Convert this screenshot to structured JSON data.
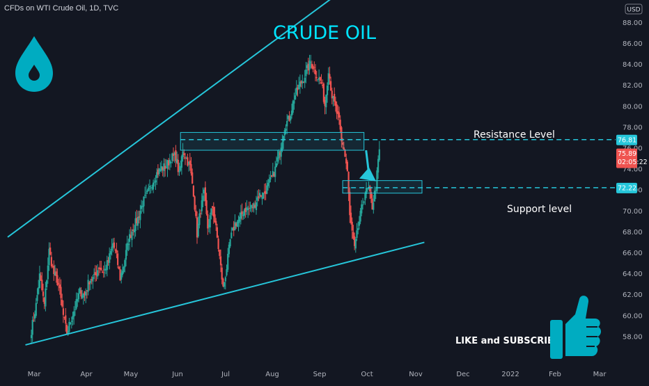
{
  "header": {
    "symbol_line": "CFDs on WTI Crude Oil, 1D, TVC",
    "currency_badge": "USD"
  },
  "colors": {
    "background": "#131722",
    "up": "#26a69a",
    "down": "#ef5350",
    "cyan": "#26c6da",
    "title": "#00e5ff",
    "drop_icon": "#00acc1"
  },
  "icons": {
    "drop": "water-drop-icon",
    "thumb": "thumbs-up-icon"
  },
  "annotations": {
    "title": "CRUDE OIL",
    "resistance_label": "Resistance Level",
    "support_label": "Support level",
    "cta": "LIKE and SUBSCRIBE"
  },
  "price_tags": {
    "resistance": "76.81",
    "current_price": "75.89",
    "countdown": "02:05:22",
    "support": "72.22"
  },
  "chart_data": {
    "type": "candlestick",
    "symbol": "CFDs on WTI Crude Oil",
    "interval": "1D",
    "source": "TVC",
    "currency": "USD",
    "ylim": [
      56.5,
      90.5
    ],
    "y_ticks": [
      58,
      60,
      62,
      64,
      66,
      68,
      70,
      72,
      74,
      76,
      78,
      80,
      82,
      84,
      86,
      88
    ],
    "x_ticks": [
      "Mar",
      "Apr",
      "May",
      "Jun",
      "Jul",
      "Aug",
      "Sep",
      "Oct",
      "Nov",
      "Dec",
      "2022",
      "Feb",
      "Mar"
    ],
    "close_path": [
      [
        0,
        58.6
      ],
      [
        4,
        61.0
      ],
      [
        7,
        63.8
      ],
      [
        11,
        61.0
      ],
      [
        15,
        66.2
      ],
      [
        19,
        64.0
      ],
      [
        23,
        63.0
      ],
      [
        27,
        60.0
      ],
      [
        30,
        58.3
      ],
      [
        33,
        59.5
      ],
      [
        37,
        60.8
      ],
      [
        41,
        62.3
      ],
      [
        45,
        62.0
      ],
      [
        49,
        63.4
      ],
      [
        53,
        63.6
      ],
      [
        57,
        64.7
      ],
      [
        61,
        64.1
      ],
      [
        65,
        65.2
      ],
      [
        69,
        66.9
      ],
      [
        72,
        65.6
      ],
      [
        75,
        63.6
      ],
      [
        78,
        64.8
      ],
      [
        82,
        67.2
      ],
      [
        86,
        68.4
      ],
      [
        90,
        69.3
      ],
      [
        94,
        70.8
      ],
      [
        98,
        71.6
      ],
      [
        102,
        72.7
      ],
      [
        106,
        73.6
      ],
      [
        110,
        74.1
      ],
      [
        114,
        74.3
      ],
      [
        118,
        75.1
      ],
      [
        122,
        75.2
      ],
      [
        125,
        73.4
      ],
      [
        128,
        75.9
      ],
      [
        131,
        75.0
      ],
      [
        134,
        74.2
      ],
      [
        137,
        71.8
      ],
      [
        140,
        67.8
      ],
      [
        143,
        70.2
      ],
      [
        146,
        71.6
      ],
      [
        149,
        68.4
      ],
      [
        153,
        70.4
      ],
      [
        156,
        68.3
      ],
      [
        159,
        65.6
      ],
      [
        162,
        62.6
      ],
      [
        165,
        64.6
      ],
      [
        168,
        67.2
      ],
      [
        172,
        68.8
      ],
      [
        176,
        69.2
      ],
      [
        180,
        70.2
      ],
      [
        184,
        70.2
      ],
      [
        188,
        70.5
      ],
      [
        192,
        71.5
      ],
      [
        196,
        71.6
      ],
      [
        200,
        72.4
      ],
      [
        203,
        73.1
      ],
      [
        206,
        74.0
      ],
      [
        210,
        75.8
      ],
      [
        214,
        78.1
      ],
      [
        218,
        78.9
      ],
      [
        222,
        80.8
      ],
      [
        226,
        81.9
      ],
      [
        230,
        82.7
      ],
      [
        233,
        83.5
      ],
      [
        236,
        84.2
      ],
      [
        239,
        83.6
      ],
      [
        242,
        82.8
      ],
      [
        245,
        82.2
      ],
      [
        248,
        80.1
      ],
      [
        251,
        83.6
      ],
      [
        254,
        81.0
      ],
      [
        257,
        79.8
      ],
      [
        260,
        78.5
      ],
      [
        262,
        76.5
      ],
      [
        264,
        76.0
      ],
      [
        267,
        73.8
      ],
      [
        269,
        69.4
      ],
      [
        271,
        68.0
      ],
      [
        273,
        66.3
      ],
      [
        276,
        68.4
      ],
      [
        279,
        70.2
      ],
      [
        282,
        71.8
      ],
      [
        285,
        72.0
      ],
      [
        288,
        70.4
      ],
      [
        291,
        72.3
      ],
      [
        294,
        75.89
      ]
    ],
    "trendlines": [
      {
        "name": "upper channel",
        "points": [
          [
            -20,
            67.5
          ],
          [
            268,
            91.5
          ]
        ]
      },
      {
        "name": "lower channel",
        "points": [
          [
            -5,
            57.2
          ],
          [
            332,
            67.0
          ]
        ]
      }
    ],
    "zones": [
      {
        "name": "Resistance Level",
        "x": [
          126,
          281
        ],
        "y": [
          75.8,
          77.5
        ],
        "level": 76.81
      },
      {
        "name": "Support level",
        "x": [
          263,
          330
        ],
        "y": [
          71.7,
          72.9
        ],
        "level": 72.22
      }
    ]
  }
}
